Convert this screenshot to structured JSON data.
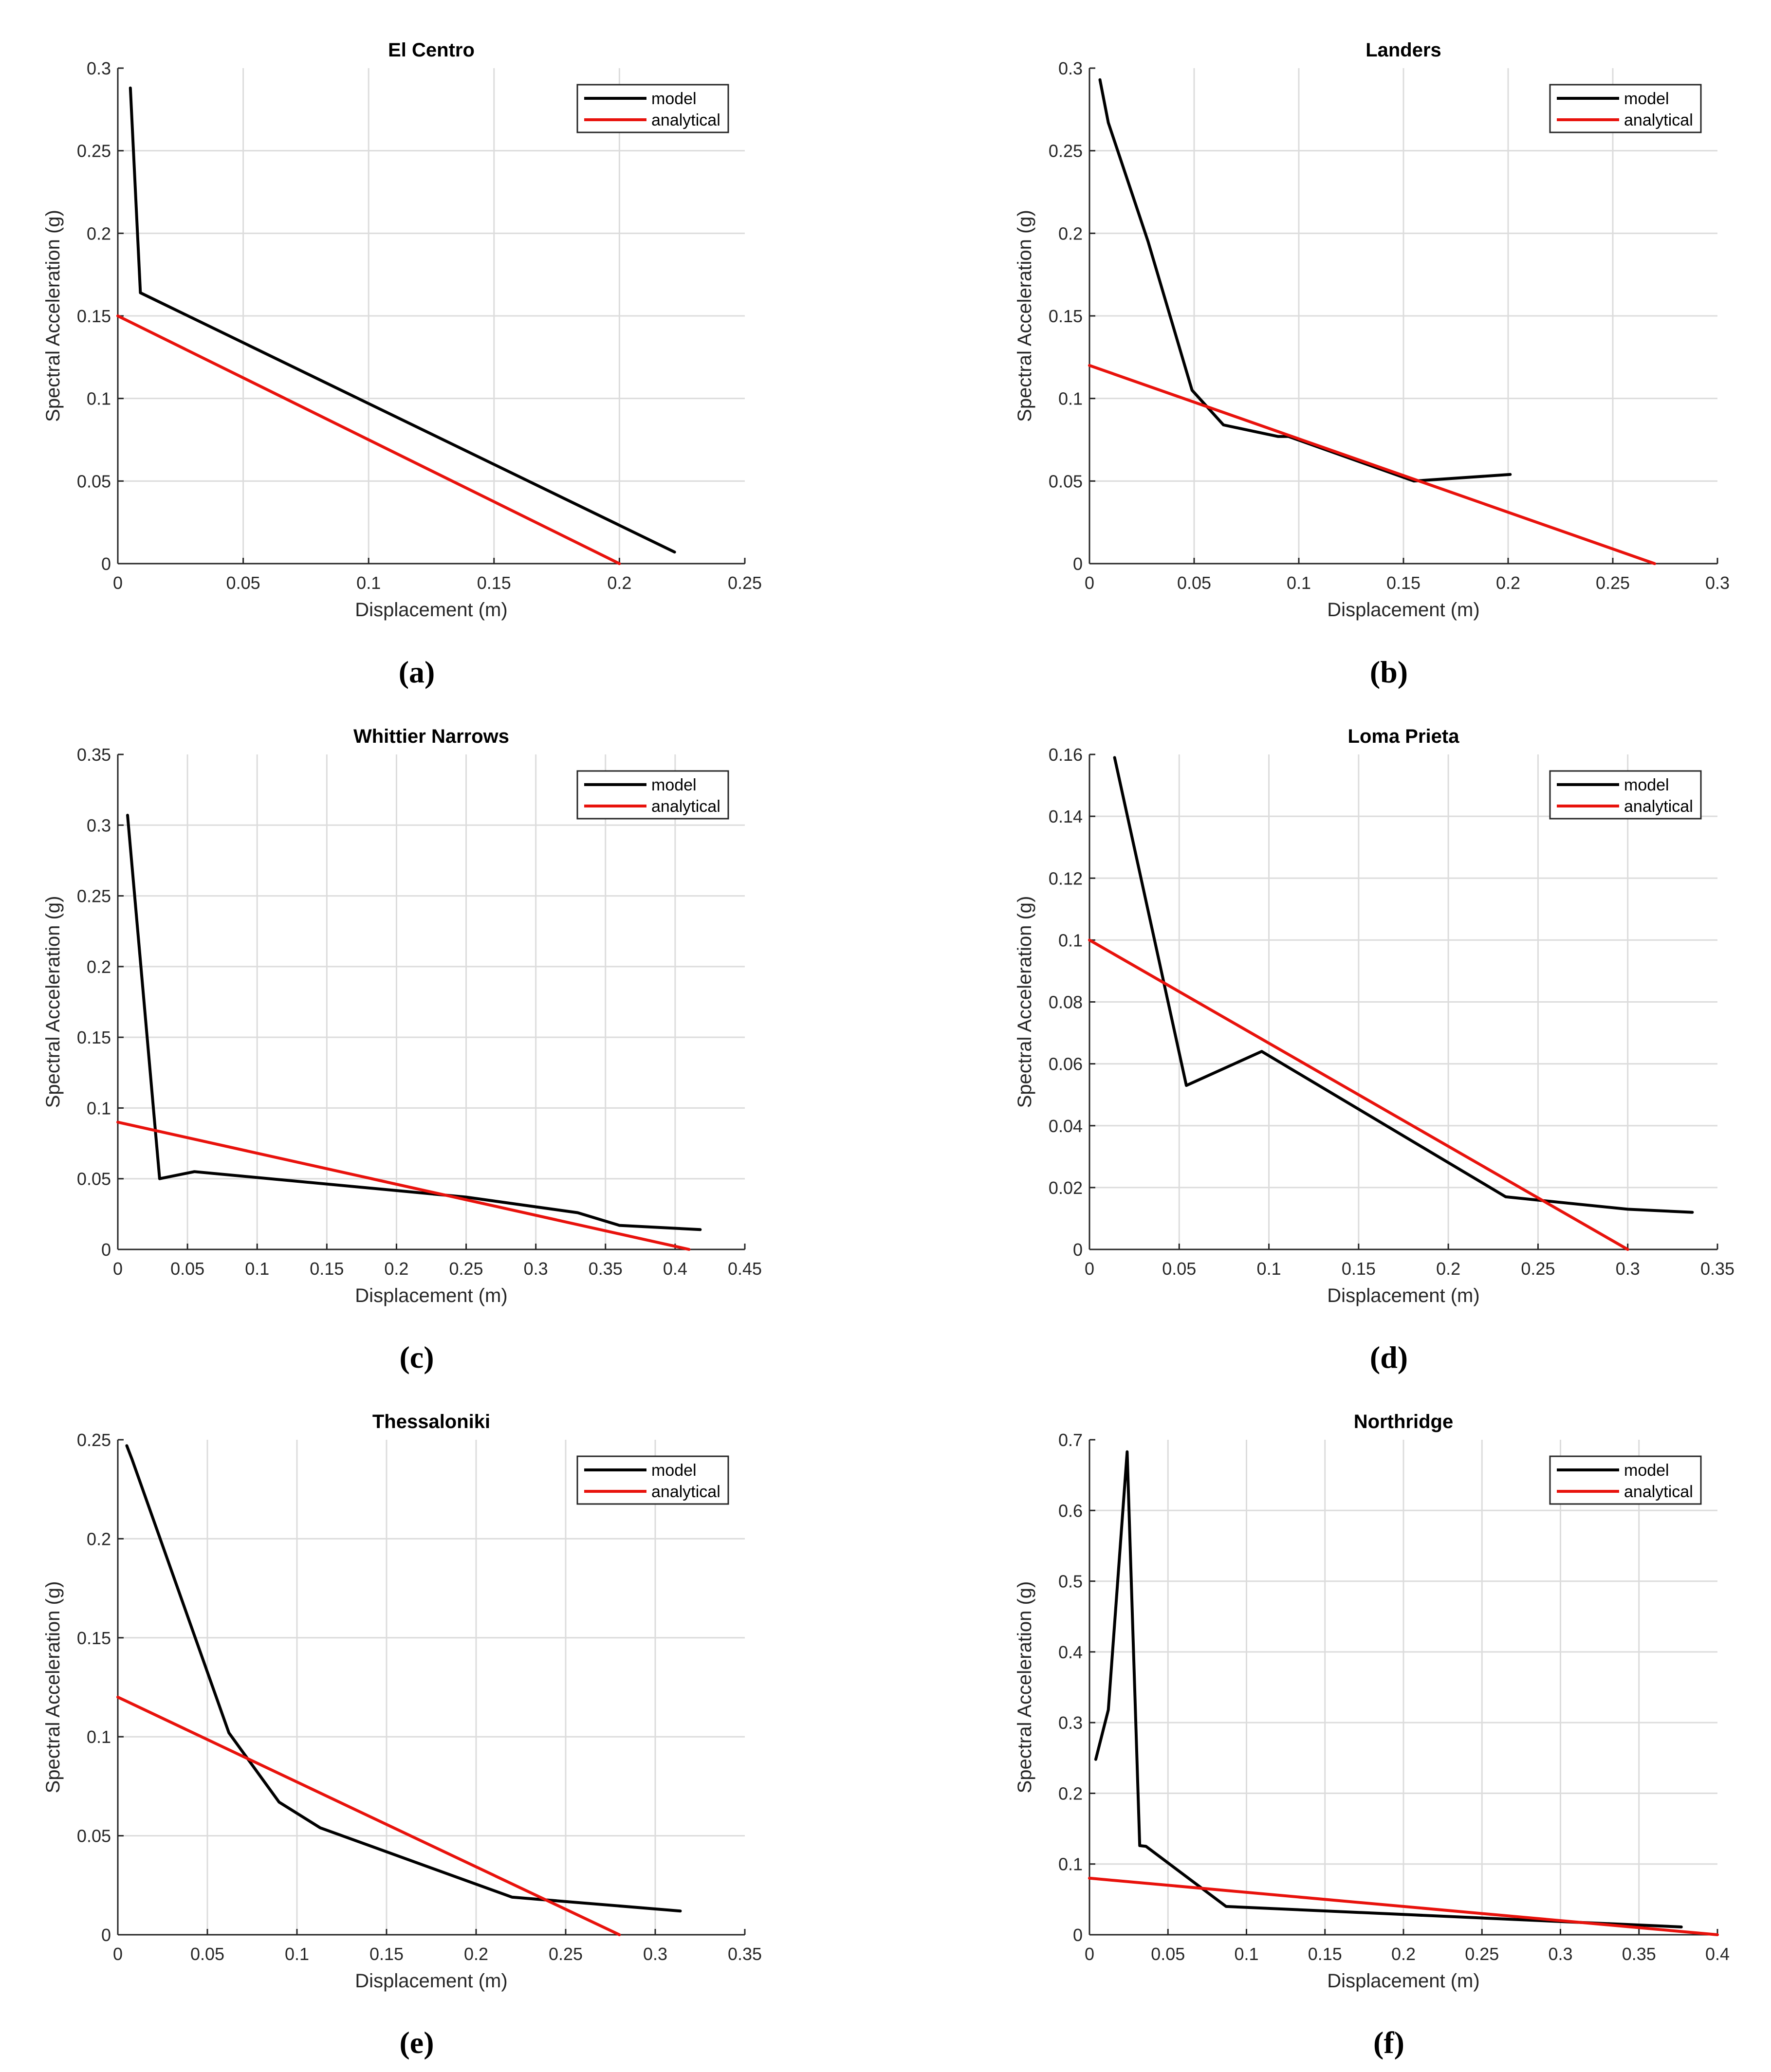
{
  "colors": {
    "model": "#000000",
    "analytical": "#e8120c",
    "grid": "#dcdcdc",
    "axis": "#262626"
  },
  "chart_data": [
    {
      "type": "line",
      "caption": "(a)",
      "title": "El Centro",
      "xlabel": "Displacement (m)",
      "ylabel": "Spectral Acceleration (g)",
      "xlim": [
        0,
        0.25
      ],
      "ylim": [
        0,
        0.3
      ],
      "xticks": [
        0,
        0.05,
        0.1,
        0.15,
        0.2,
        0.25
      ],
      "xtick_labels": [
        "0",
        "0.05",
        "0.1",
        "0.15",
        "0.2",
        "0.25"
      ],
      "yticks": [
        0,
        0.05,
        0.1,
        0.15,
        0.2,
        0.25,
        0.3
      ],
      "ytick_labels": [
        "0",
        "0.05",
        "0.1",
        "0.15",
        "0.2",
        "0.25",
        "0.3"
      ],
      "legend": [
        "model",
        "analytical"
      ],
      "series": [
        {
          "name": "model",
          "x": [
            0.005,
            0.009,
            0.222
          ],
          "y": [
            0.288,
            0.164,
            0.007
          ]
        },
        {
          "name": "analytical",
          "x": [
            0,
            0.2
          ],
          "y": [
            0.15,
            0
          ]
        }
      ]
    },
    {
      "type": "line",
      "caption": "(b)",
      "title": "Landers",
      "xlabel": "Displacement (m)",
      "ylabel": "Spectral Acceleration (g)",
      "xlim": [
        0,
        0.3
      ],
      "ylim": [
        0,
        0.3
      ],
      "xticks": [
        0,
        0.05,
        0.1,
        0.15,
        0.2,
        0.25,
        0.3
      ],
      "xtick_labels": [
        "0",
        "0.05",
        "0.1",
        "0.15",
        "0.2",
        "0.25",
        "0.3"
      ],
      "yticks": [
        0,
        0.05,
        0.1,
        0.15,
        0.2,
        0.25,
        0.3
      ],
      "ytick_labels": [
        "0",
        "0.05",
        "0.1",
        "0.15",
        "0.2",
        "0.25",
        "0.3"
      ],
      "legend": [
        "model",
        "analytical"
      ],
      "series": [
        {
          "name": "model",
          "x": [
            0.005,
            0.009,
            0.028,
            0.049,
            0.064,
            0.09,
            0.095,
            0.155,
            0.201
          ],
          "y": [
            0.293,
            0.267,
            0.195,
            0.105,
            0.084,
            0.077,
            0.077,
            0.05,
            0.054
          ]
        },
        {
          "name": "analytical",
          "x": [
            0,
            0.27
          ],
          "y": [
            0.12,
            0
          ]
        }
      ]
    },
    {
      "type": "line",
      "caption": "(c)",
      "title": "Whittier Narrows",
      "xlabel": "Displacement (m)",
      "ylabel": "Spectral Acceleration (g)",
      "xlim": [
        0,
        0.45
      ],
      "ylim": [
        0,
        0.35
      ],
      "xticks": [
        0,
        0.05,
        0.1,
        0.15,
        0.2,
        0.25,
        0.3,
        0.35,
        0.4,
        0.45
      ],
      "xtick_labels": [
        "0",
        "0.05",
        "0.1",
        "0.15",
        "0.2",
        "0.25",
        "0.3",
        "0.35",
        "0.4",
        "0.45"
      ],
      "yticks": [
        0,
        0.05,
        0.1,
        0.15,
        0.2,
        0.25,
        0.3,
        0.35
      ],
      "ytick_labels": [
        "0",
        "0.05",
        "0.1",
        "0.15",
        "0.2",
        "0.25",
        "0.3",
        "0.35"
      ],
      "legend": [
        "model",
        "analytical"
      ],
      "series": [
        {
          "name": "model",
          "x": [
            0.007,
            0.03,
            0.055,
            0.25,
            0.33,
            0.36,
            0.418
          ],
          "y": [
            0.307,
            0.05,
            0.055,
            0.037,
            0.026,
            0.017,
            0.014
          ]
        },
        {
          "name": "analytical",
          "x": [
            0,
            0.41
          ],
          "y": [
            0.09,
            0
          ]
        }
      ]
    },
    {
      "type": "line",
      "caption": "(d)",
      "title": "Loma Prieta",
      "xlabel": "Displacement (m)",
      "ylabel": "Spectral Acceleration (g)",
      "xlim": [
        0,
        0.35
      ],
      "ylim": [
        0,
        0.16
      ],
      "xticks": [
        0,
        0.05,
        0.1,
        0.15,
        0.2,
        0.25,
        0.3,
        0.35
      ],
      "xtick_labels": [
        "0",
        "0.05",
        "0.1",
        "0.15",
        "0.2",
        "0.25",
        "0.3",
        "0.35"
      ],
      "yticks": [
        0,
        0.02,
        0.04,
        0.06,
        0.08,
        0.1,
        0.12,
        0.14,
        0.16
      ],
      "ytick_labels": [
        "0",
        "0.02",
        "0.04",
        "0.06",
        "0.08",
        "0.1",
        "0.12",
        "0.14",
        "0.16"
      ],
      "legend": [
        "model",
        "analytical"
      ],
      "series": [
        {
          "name": "model",
          "x": [
            0.014,
            0.054,
            0.096,
            0.232,
            0.3,
            0.336
          ],
          "y": [
            0.159,
            0.053,
            0.064,
            0.017,
            0.013,
            0.012
          ]
        },
        {
          "name": "analytical",
          "x": [
            0,
            0.3
          ],
          "y": [
            0.1,
            0
          ]
        }
      ]
    },
    {
      "type": "line",
      "caption": "(e)",
      "title": "Thessaloniki",
      "xlabel": "Displacement (m)",
      "ylabel": "Spectral Acceleration (g)",
      "xlim": [
        0,
        0.35
      ],
      "ylim": [
        0,
        0.25
      ],
      "xticks": [
        0,
        0.05,
        0.1,
        0.15,
        0.2,
        0.25,
        0.3,
        0.35
      ],
      "xtick_labels": [
        "0",
        "0.05",
        "0.1",
        "0.15",
        "0.2",
        "0.25",
        "0.3",
        "0.35"
      ],
      "yticks": [
        0,
        0.05,
        0.1,
        0.15,
        0.2,
        0.25
      ],
      "ytick_labels": [
        "0",
        "0.05",
        "0.1",
        "0.15",
        "0.2",
        "0.25"
      ],
      "legend": [
        "model",
        "analytical"
      ],
      "series": [
        {
          "name": "model",
          "x": [
            0.005,
            0.008,
            0.062,
            0.09,
            0.113,
            0.22,
            0.314
          ],
          "y": [
            0.247,
            0.24,
            0.102,
            0.067,
            0.054,
            0.019,
            0.012
          ]
        },
        {
          "name": "analytical",
          "x": [
            0,
            0.28
          ],
          "y": [
            0.12,
            0
          ]
        }
      ]
    },
    {
      "type": "line",
      "caption": "(f)",
      "title": "Northridge",
      "xlabel": "Displacement (m)",
      "ylabel": "Spectral Acceleration (g)",
      "xlim": [
        0,
        0.4
      ],
      "ylim": [
        0,
        0.7
      ],
      "xticks": [
        0,
        0.05,
        0.1,
        0.15,
        0.2,
        0.25,
        0.3,
        0.35,
        0.4
      ],
      "xtick_labels": [
        "0",
        "0.05",
        "0.1",
        "0.15",
        "0.2",
        "0.25",
        "0.3",
        "0.35",
        "0.4"
      ],
      "yticks": [
        0,
        0.1,
        0.2,
        0.3,
        0.4,
        0.5,
        0.6,
        0.7
      ],
      "ytick_labels": [
        "0",
        "0.1",
        "0.2",
        "0.3",
        "0.4",
        "0.5",
        "0.6",
        "0.7"
      ],
      "legend": [
        "model",
        "analytical"
      ],
      "series": [
        {
          "name": "model",
          "x": [
            0.004,
            0.012,
            0.024,
            0.032,
            0.036,
            0.087,
            0.377
          ],
          "y": [
            0.248,
            0.318,
            0.683,
            0.126,
            0.125,
            0.04,
            0.011
          ]
        },
        {
          "name": "analytical",
          "x": [
            0,
            0.4
          ],
          "y": [
            0.08,
            0
          ]
        }
      ]
    }
  ]
}
